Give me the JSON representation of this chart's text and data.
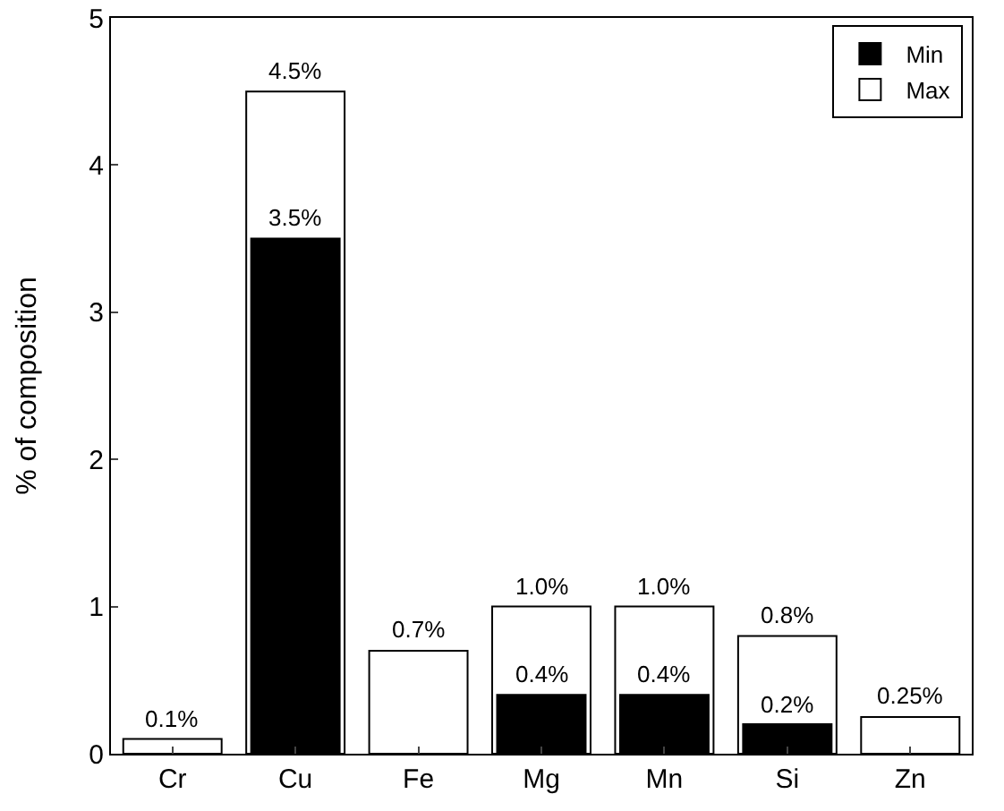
{
  "chart_data": {
    "type": "bar",
    "ylabel": "% of composition",
    "categories": [
      "Cr",
      "Cu",
      "Fe",
      "Mg",
      "Mn",
      "Si",
      "Zn"
    ],
    "series": [
      {
        "name": "Min",
        "color": "#000000",
        "values": [
          null,
          3.5,
          null,
          0.4,
          0.4,
          0.2,
          null
        ],
        "value_labels": [
          null,
          "3.5%",
          null,
          "0.4%",
          "0.4%",
          "0.2%",
          null
        ]
      },
      {
        "name": "Max",
        "color": "#ffffff",
        "values": [
          0.1,
          4.5,
          0.7,
          1.0,
          1.0,
          0.8,
          0.25
        ],
        "value_labels": [
          "0.1%",
          "4.5%",
          "0.7%",
          "1.0%",
          "1.0%",
          "0.8%",
          "0.25%"
        ]
      }
    ],
    "ylim": [
      0,
      5
    ],
    "yticks": [
      0,
      1,
      2,
      3,
      4,
      5
    ],
    "grid": false,
    "legend": "top right"
  }
}
